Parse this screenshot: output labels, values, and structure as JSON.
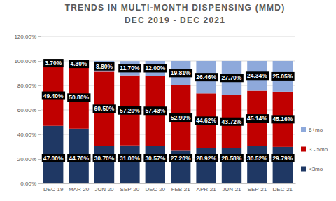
{
  "chart_data": {
    "type": "bar",
    "stacked": true,
    "title": "TRENDS IN MULTI-MONTH DISPENSING (MMD)",
    "subtitle": "DEC 2019 - DEC 2021",
    "categories": [
      "DEC-19",
      "MAR-20",
      "JUN-20",
      "SEP-20",
      "DEC-20",
      "FEB-21",
      "APR-21",
      "JUN-21",
      "SEP-21",
      "DEC-21"
    ],
    "series": [
      {
        "name": "<3mo",
        "color": "#1f3864",
        "values": [
          47.0,
          44.7,
          30.7,
          31.0,
          30.57,
          27.2,
          28.92,
          28.58,
          30.52,
          29.79
        ],
        "value_labels": [
          "47.00%",
          "44.70%",
          "30.70%",
          "31.00%",
          "30.57%",
          "27.20%",
          "28.92%",
          "28.58%",
          "30.52%",
          "29.79%"
        ]
      },
      {
        "name": "3 - 5mo",
        "color": "#c00000",
        "values": [
          49.4,
          50.8,
          60.5,
          57.2,
          57.43,
          52.99,
          44.62,
          43.72,
          45.14,
          45.16
        ],
        "value_labels": [
          "49.40%",
          "50.80%",
          "60.50%",
          "57.20%",
          "57.43%",
          "52.99%",
          "44.62%",
          "43.72%",
          "45.14%",
          "45.16%"
        ]
      },
      {
        "name": "6+mo",
        "color": "#8ea9db",
        "values": [
          3.7,
          4.3,
          8.8,
          11.7,
          12.0,
          19.81,
          26.46,
          27.7,
          24.34,
          25.05
        ],
        "value_labels": [
          "3.70%",
          "4.30%",
          "8.80%",
          "11.70%",
          "12.00%",
          "19.81%",
          "26.46%",
          "27.70%",
          "24.34%",
          "25.05%"
        ]
      }
    ],
    "ylim": [
      0,
      120
    ],
    "yticks": [
      {
        "value": 0,
        "label": "0.00%"
      },
      {
        "value": 20,
        "label": "20.00%"
      },
      {
        "value": 40,
        "label": "40.00%"
      },
      {
        "value": 60,
        "label": "60.00%"
      },
      {
        "value": 80,
        "label": "80.00%"
      },
      {
        "value": 100,
        "label": "100.00%"
      },
      {
        "value": 120,
        "label": "120.00%"
      }
    ],
    "grid": true,
    "data_labels": true,
    "legend": "right"
  }
}
